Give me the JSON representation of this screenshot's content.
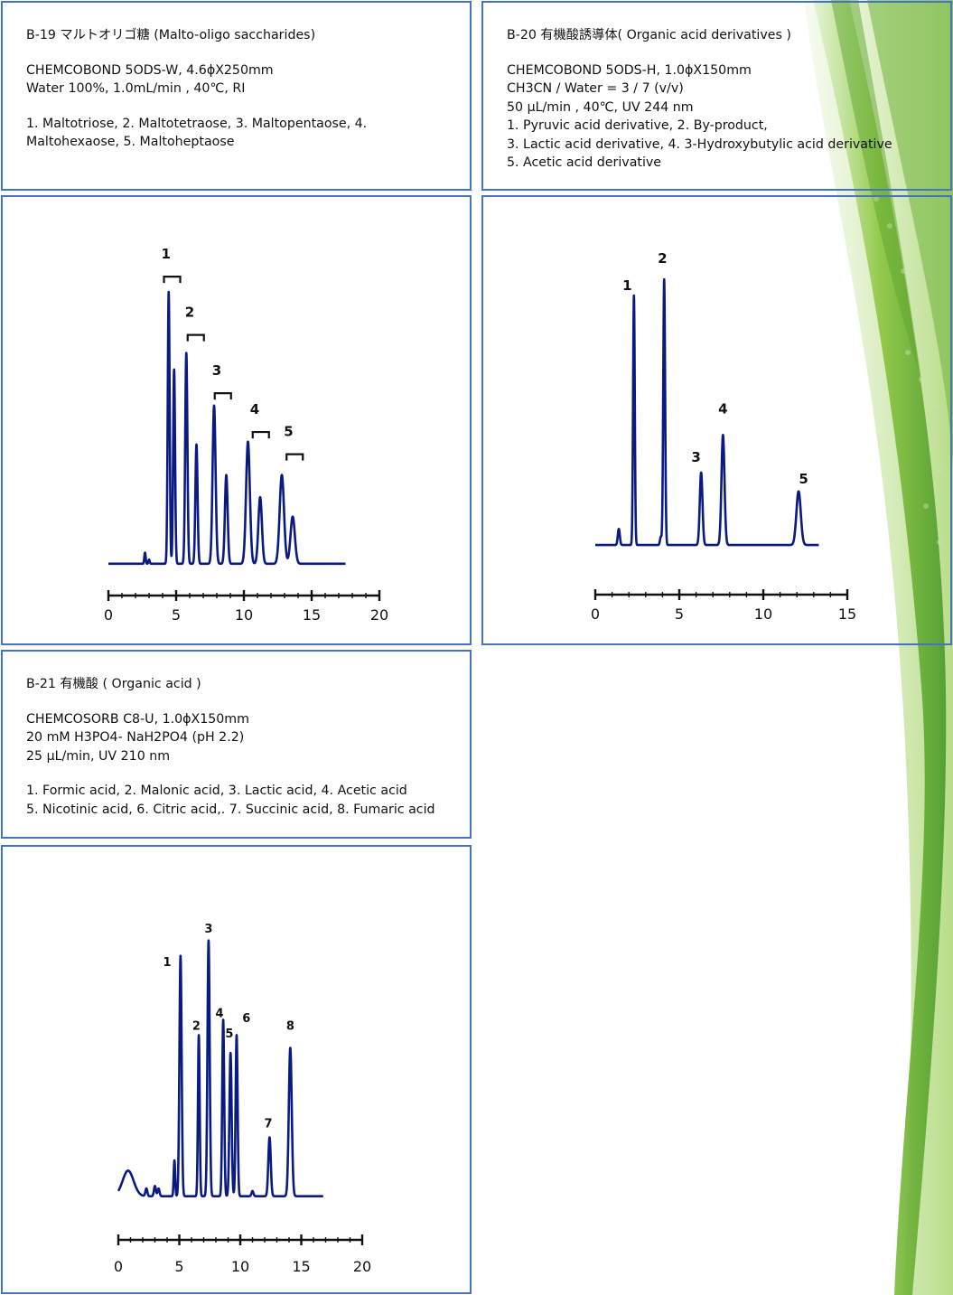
{
  "panels": {
    "b19": {
      "title": "B-19 マルトオリゴ糖 (Malto-oligo saccharides)",
      "conditions": [
        "CHEMCOBOND 5ODS-W, 4.6ϕX250mm",
        "Water 100%, 1.0mL/min , 40℃, RI"
      ],
      "peaks_text": [
        "1. Maltotriose, 2. Maltotetraose, 3. Maltopentaose, 4.",
        "Maltohexaose, 5. Maltoheptaose"
      ]
    },
    "b20": {
      "title": "B-20 有機酸誘導体( Organic acid derivatives )",
      "conditions": [
        "CHEMCOBOND 5ODS-H, 1.0ϕX150mm",
        "CH3CN / Water = 3 / 7 (v/v)",
        "50 μL/min , 40℃, UV 244 nm"
      ],
      "peaks_text": [
        "1. Pyruvic acid derivative, 2. By-product,",
        "3. Lactic acid derivative, 4. 3-Hydroxybutylic acid derivative",
        "5. Acetic acid derivative"
      ]
    },
    "b21": {
      "title": "B-21 有機酸 ( Organic acid )",
      "conditions": [
        "CHEMCOSORB C8-U, 1.0ϕX150mm",
        "20 mM H3PO4- NaH2PO4 (pH 2.2)",
        "25 μL/min, UV 210 nm"
      ],
      "peaks_text": [
        "1. Formic acid, 2. Malonic acid, 3. Lactic acid, 4. Acetic acid",
        "5. Nicotinic acid, 6. Citric acid,. 7. Succinic acid, 8. Fumaric acid"
      ]
    }
  },
  "colors": {
    "trace": "#0a1a80",
    "border": "#4472c4",
    "axis": "#111111"
  },
  "chart_data": [
    {
      "id": "b19",
      "type": "line",
      "xlim": [
        0,
        20
      ],
      "xticks": [
        "0",
        "5",
        "10",
        "15",
        "20"
      ],
      "trace_range": [
        0,
        17.5
      ],
      "baseline": 0.02,
      "peaks": [
        {
          "rt": 2.7,
          "h": 0.04,
          "w": 0.05
        },
        {
          "rt": 3.0,
          "h": 0.015,
          "w": 0.05
        },
        {
          "rt": 4.45,
          "h": 0.98,
          "w": 0.07
        },
        {
          "rt": 4.85,
          "h": 0.7,
          "w": 0.07
        },
        {
          "rt": 5.75,
          "h": 0.76,
          "w": 0.08
        },
        {
          "rt": 6.5,
          "h": 0.43,
          "w": 0.08
        },
        {
          "rt": 7.8,
          "h": 0.57,
          "w": 0.11
        },
        {
          "rt": 8.7,
          "h": 0.32,
          "w": 0.1
        },
        {
          "rt": 10.3,
          "h": 0.44,
          "w": 0.14
        },
        {
          "rt": 11.2,
          "h": 0.24,
          "w": 0.13
        },
        {
          "rt": 12.8,
          "h": 0.32,
          "w": 0.16
        },
        {
          "rt": 13.6,
          "h": 0.17,
          "w": 0.16
        }
      ],
      "annotations": [
        {
          "label": "1",
          "rt": 4.25,
          "y": 1.12
        },
        {
          "label": "2",
          "rt": 6.0,
          "y": 0.91
        },
        {
          "label": "3",
          "rt": 8.0,
          "y": 0.7
        },
        {
          "label": "4",
          "rt": 10.8,
          "y": 0.56
        },
        {
          "label": "5",
          "rt": 13.3,
          "y": 0.48
        }
      ]
    },
    {
      "id": "b20",
      "type": "line",
      "xlim": [
        0,
        15
      ],
      "xticks": [
        "0",
        "5",
        "10",
        "15"
      ],
      "trace_range": [
        0,
        13.3
      ],
      "baseline": 0.03,
      "peaks": [
        {
          "rt": 1.4,
          "h": 0.06,
          "w": 0.06
        },
        {
          "rt": 2.3,
          "h": 0.93,
          "w": 0.05
        },
        {
          "rt": 3.9,
          "h": 0.03,
          "w": 0.05
        },
        {
          "rt": 4.1,
          "h": 0.99,
          "w": 0.055
        },
        {
          "rt": 6.3,
          "h": 0.27,
          "w": 0.08
        },
        {
          "rt": 7.6,
          "h": 0.41,
          "w": 0.09
        },
        {
          "rt": 12.1,
          "h": 0.2,
          "w": 0.13
        }
      ],
      "annotations": [
        {
          "label": "1",
          "rt": 1.9,
          "y": 0.98
        },
        {
          "label": "2",
          "rt": 4.0,
          "y": 1.08
        },
        {
          "label": "3",
          "rt": 6.0,
          "y": 0.34
        },
        {
          "label": "4",
          "rt": 7.6,
          "y": 0.52
        },
        {
          "label": "5",
          "rt": 12.4,
          "y": 0.26
        }
      ]
    },
    {
      "id": "b21",
      "type": "line",
      "xlim": [
        0,
        20
      ],
      "xticks": [
        "0",
        "5",
        "10",
        "15",
        "20"
      ],
      "trace_range": [
        0,
        16.8
      ],
      "baseline": 0.04,
      "peaks": [
        {
          "rt": 0.8,
          "h": 0.1,
          "w": 0.45
        },
        {
          "rt": 2.3,
          "h": 0.03,
          "w": 0.08
        },
        {
          "rt": 3.0,
          "h": 0.04,
          "w": 0.08
        },
        {
          "rt": 3.3,
          "h": 0.03,
          "w": 0.08
        },
        {
          "rt": 4.6,
          "h": 0.14,
          "w": 0.06
        },
        {
          "rt": 5.1,
          "h": 0.94,
          "w": 0.09
        },
        {
          "rt": 6.6,
          "h": 0.63,
          "w": 0.07
        },
        {
          "rt": 7.4,
          "h": 1.0,
          "w": 0.09
        },
        {
          "rt": 8.6,
          "h": 0.69,
          "w": 0.08
        },
        {
          "rt": 9.2,
          "h": 0.56,
          "w": 0.09
        },
        {
          "rt": 9.7,
          "h": 0.63,
          "w": 0.08
        },
        {
          "rt": 11.0,
          "h": 0.02,
          "w": 0.08
        },
        {
          "rt": 12.4,
          "h": 0.23,
          "w": 0.1
        },
        {
          "rt": 14.1,
          "h": 0.58,
          "w": 0.12
        }
      ],
      "annotations": [
        {
          "label": "1",
          "rt": 4.0,
          "y": 0.94
        },
        {
          "label": "2",
          "rt": 6.4,
          "y": 0.69
        },
        {
          "label": "3",
          "rt": 7.4,
          "y": 1.07
        },
        {
          "label": "4",
          "rt": 8.3,
          "y": 0.74
        },
        {
          "label": "5",
          "rt": 9.1,
          "y": 0.66
        },
        {
          "label": "6",
          "rt": 10.5,
          "y": 0.72
        },
        {
          "label": "7",
          "rt": 12.3,
          "y": 0.31
        },
        {
          "label": "8",
          "rt": 14.1,
          "y": 0.69
        }
      ]
    }
  ]
}
